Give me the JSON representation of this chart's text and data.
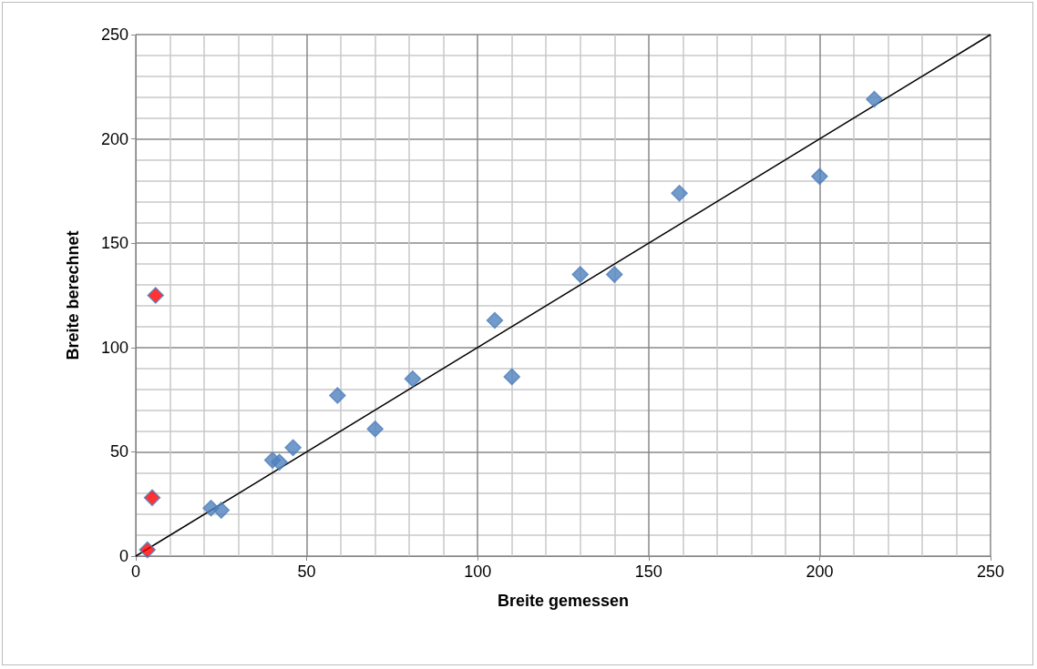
{
  "chart_data": {
    "type": "scatter",
    "xlabel": "Breite gemessen",
    "ylabel": "Breite berechnet",
    "xlim": [
      0,
      250
    ],
    "ylim": [
      0,
      250
    ],
    "xticks": [
      0,
      50,
      100,
      150,
      200,
      250
    ],
    "yticks": [
      0,
      50,
      100,
      150,
      200,
      250
    ],
    "grid": true,
    "marker": "diamond",
    "series": [
      {
        "color": "#4f81bd",
        "x": [
          22,
          25,
          40,
          42,
          46,
          59,
          70,
          81,
          105,
          110,
          130,
          140,
          159,
          200,
          216
        ],
        "values": [
          23,
          22,
          46,
          45,
          52,
          77,
          61,
          85,
          113,
          86,
          135,
          135,
          174,
          182,
          219
        ]
      },
      {
        "color": "#ff0000",
        "x": [
          3.4,
          4.8,
          5.8
        ],
        "values": [
          3,
          28,
          125
        ]
      },
      {
        "type": "line",
        "color": "#000000",
        "marker": "none",
        "x": [
          0,
          250
        ],
        "values": [
          0,
          250
        ]
      }
    ]
  }
}
